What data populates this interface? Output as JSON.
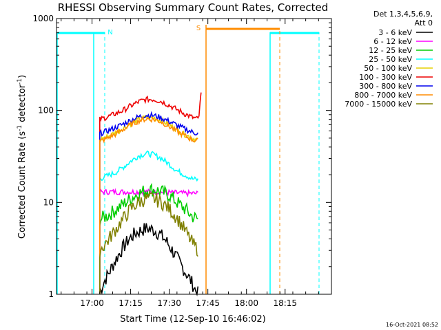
{
  "chart_data": {
    "type": "line",
    "title": "RHESSI Observing Summary Count Rates, Corrected",
    "xlabel": "Start Time (12-Sep-10 16:46:02)",
    "ylabel": "Corrected Count Rate (s",
    "ylabel_sup1": "-1",
    "ylabel_mid": " detector",
    "ylabel_sup2": "-1",
    "ylabel_end": ")",
    "ylim": [
      1,
      1000
    ],
    "y_log": true,
    "y_ticks": [
      {
        "value": 1,
        "label": "1"
      },
      {
        "value": 10,
        "label": "10"
      },
      {
        "value": 100,
        "label": "100"
      },
      {
        "value": 1000,
        "label": "1000"
      }
    ],
    "xlim_minutes": [
      16.77,
      18.55
    ],
    "x_ticks": [
      {
        "value": 17.0,
        "label": "17:00"
      },
      {
        "value": 17.25,
        "label": "17:15"
      },
      {
        "value": 17.5,
        "label": "17:30"
      },
      {
        "value": 17.75,
        "label": "17:45"
      },
      {
        "value": 18.0,
        "label": "18:00"
      },
      {
        "value": 18.25,
        "label": "18:15"
      }
    ],
    "legend_header": [
      "Det 1,3,4,5,6,9,",
      "Att 0"
    ],
    "legend_placement": "right",
    "series": [
      {
        "name": "3 - 6 keV",
        "color": "#000000",
        "x": [
          17.05,
          17.07,
          17.1,
          17.13,
          17.16,
          17.2,
          17.24,
          17.28,
          17.32,
          17.36,
          17.4,
          17.44,
          17.48,
          17.52,
          17.56,
          17.6,
          17.64,
          17.67,
          17.69
        ],
        "y": [
          1.0,
          1.3,
          1.6,
          2.0,
          2.5,
          3.2,
          4.0,
          4.6,
          5.0,
          5.2,
          5.0,
          4.5,
          3.8,
          3.0,
          2.3,
          1.8,
          1.4,
          1.1,
          1.0
        ]
      },
      {
        "name": "6 - 12 keV",
        "color": "#ff00ff",
        "x": [
          17.05,
          17.1,
          17.2,
          17.3,
          17.4,
          17.5,
          17.6,
          17.69
        ],
        "y": [
          13,
          13,
          13,
          13,
          13,
          12.8,
          12.5,
          12.5
        ]
      },
      {
        "name": "12 - 25 keV",
        "color": "#00cc00",
        "x": [
          17.05,
          17.1,
          17.15,
          17.2,
          17.25,
          17.3,
          17.35,
          17.4,
          17.45,
          17.5,
          17.55,
          17.6,
          17.65,
          17.69
        ],
        "y": [
          6.5,
          7.2,
          8.2,
          9.5,
          11,
          12.5,
          13.5,
          13.8,
          13,
          12,
          10,
          8.5,
          7,
          6.5
        ]
      },
      {
        "name": "25 - 50 keV",
        "color": "#00ffff",
        "x": [
          17.05,
          17.1,
          17.15,
          17.2,
          17.25,
          17.3,
          17.35,
          17.4,
          17.45,
          17.5,
          17.55,
          17.6,
          17.65,
          17.69
        ],
        "y": [
          18,
          19.5,
          21,
          24,
          28,
          32,
          34,
          33,
          30,
          26,
          22,
          20,
          18,
          17.5
        ]
      },
      {
        "name": "50 - 100 keV",
        "color": "#e6d000",
        "x": [
          17.05,
          17.1,
          17.15,
          17.2,
          17.25,
          17.3,
          17.35,
          17.4,
          17.45,
          17.5,
          17.55,
          17.6,
          17.65,
          17.69
        ],
        "y": [
          48,
          52,
          57,
          64,
          72,
          79,
          84,
          83,
          78,
          70,
          62,
          55,
          50,
          48
        ]
      },
      {
        "name": "100 - 300 keV",
        "color": "#ee0000",
        "x": [
          17.05,
          17.1,
          17.15,
          17.2,
          17.25,
          17.3,
          17.35,
          17.4,
          17.45,
          17.5,
          17.55,
          17.6,
          17.65,
          17.69,
          17.7,
          17.71
        ],
        "y": [
          80,
          85,
          92,
          100,
          112,
          124,
          132,
          132,
          125,
          114,
          102,
          92,
          84,
          80,
          120,
          180
        ]
      },
      {
        "name": "300 - 800 keV",
        "color": "#0000ee",
        "x": [
          17.05,
          17.1,
          17.15,
          17.2,
          17.25,
          17.3,
          17.35,
          17.4,
          17.45,
          17.5,
          17.55,
          17.6,
          17.65,
          17.69
        ],
        "y": [
          56,
          60,
          65,
          71,
          78,
          85,
          89,
          88,
          83,
          76,
          69,
          63,
          58,
          56
        ]
      },
      {
        "name": "800 - 7000 keV",
        "color": "#ff8c00",
        "x": [
          17.05,
          17.1,
          17.15,
          17.2,
          17.25,
          17.3,
          17.35,
          17.4,
          17.45,
          17.5,
          17.55,
          17.6,
          17.65,
          17.69
        ],
        "y": [
          46,
          50,
          55,
          62,
          70,
          77,
          81,
          80,
          75,
          67,
          59,
          53,
          48,
          46
        ]
      },
      {
        "name": "7000 - 15000 keV",
        "color": "#808000",
        "x": [
          17.05,
          17.1,
          17.15,
          17.2,
          17.25,
          17.3,
          17.35,
          17.4,
          17.45,
          17.5,
          17.55,
          17.6,
          17.65,
          17.69
        ],
        "y": [
          3.0,
          3.8,
          5.0,
          6.5,
          8.5,
          10,
          11,
          11,
          10,
          8.5,
          6.8,
          5.0,
          3.6,
          3.0
        ]
      }
    ],
    "annotations": [
      {
        "label": "N",
        "color": "#00ffff"
      },
      {
        "label": "S",
        "color": "#ff8c00"
      }
    ],
    "timestamp": "16-Oct-2021 08:52"
  }
}
